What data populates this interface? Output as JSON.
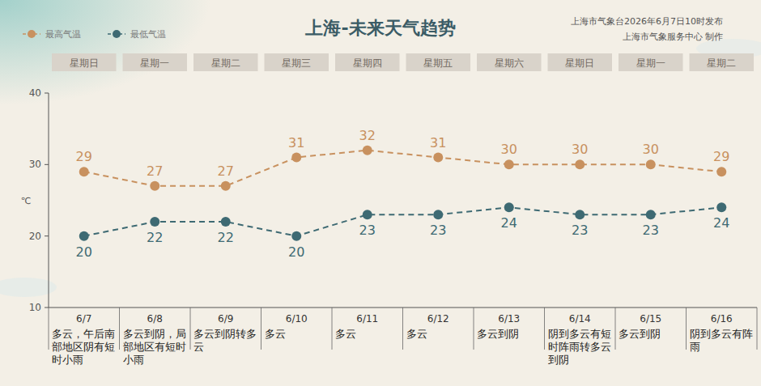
{
  "chart_data": {
    "type": "line",
    "title": "上海-未来天气趋势",
    "notes": [
      "上海市气象台2026年6月7日10时发布",
      "上海市气象服务中心 制作"
    ],
    "categories": [
      "6/7",
      "6/8",
      "6/9",
      "6/10",
      "6/11",
      "6/12",
      "6/13",
      "6/14",
      "6/15",
      "6/16"
    ],
    "weekdays": [
      "星期日",
      "星期一",
      "星期二",
      "星期三",
      "星期四",
      "星期五",
      "星期六",
      "星期日",
      "星期一",
      "星期二"
    ],
    "descriptions": [
      "多云，午后南部地区阴有短时小雨",
      "多云到阴，局部地区有短时小雨",
      "多云到阴转多云",
      "多云",
      "多云",
      "多云",
      "多云到阴",
      "阴到多云有短时阵雨转多云到阴",
      "多云到阴",
      "阴到多云有阵雨"
    ],
    "series": [
      {
        "name": "最高气温",
        "color": "#c8915f",
        "marker": "circle",
        "line_style": "dashed",
        "values": [
          29,
          27,
          27,
          31,
          32,
          31,
          30,
          30,
          30,
          29
        ]
      },
      {
        "name": "最低气温",
        "color": "#3e6a73",
        "marker": "circle",
        "line_style": "dashed",
        "values": [
          20,
          22,
          22,
          20,
          23,
          23,
          24,
          23,
          23,
          24
        ]
      }
    ],
    "y_label": "℃",
    "ylim": [
      10,
      40
    ],
    "yticks": [
      10,
      20,
      30,
      40
    ],
    "grid": false,
    "legend": "top-left",
    "data_labels": true
  }
}
